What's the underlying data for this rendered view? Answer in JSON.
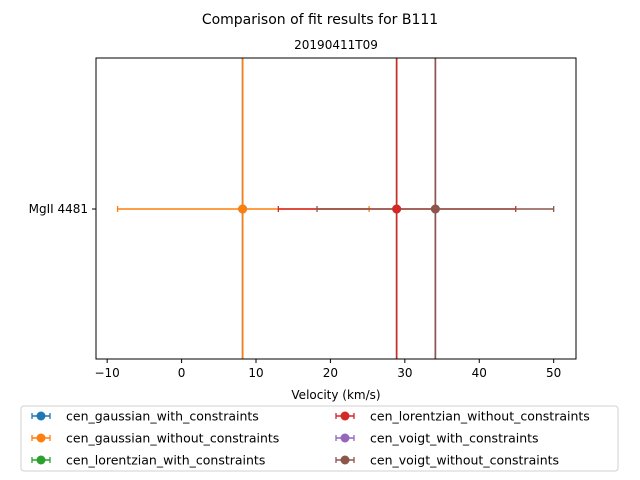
{
  "chart_data": {
    "type": "scatter",
    "title": "Comparison of fit results for B111",
    "subtitle": "20190411T09",
    "xlabel": "Velocity (km/s)",
    "ylabel": "",
    "xlim": [
      -11.5,
      53.0
    ],
    "xticks": [
      -10,
      0,
      10,
      20,
      30,
      40,
      50
    ],
    "categories": [
      "MgII 4481"
    ],
    "grid": false,
    "legend_position": "lower center",
    "legend_ncol": 2,
    "series": [
      {
        "name": "cen_gaussian_with_constraints",
        "color": "#1f77b4",
        "x": 8.2,
        "xerr_low": 8.2,
        "xerr_high": 8.2,
        "vline": 8.2
      },
      {
        "name": "cen_gaussian_without_constraints",
        "color": "#ff7f0e",
        "x": 8.2,
        "xerr_low": -8.6,
        "xerr_high": 25.2,
        "vline": 8.2
      },
      {
        "name": "cen_lorentzian_with_constraints",
        "color": "#2ca02c",
        "x": 28.9,
        "xerr_low": 28.9,
        "xerr_high": 28.9,
        "vline": 28.9
      },
      {
        "name": "cen_lorentzian_without_constraints",
        "color": "#d62728",
        "x": 28.9,
        "xerr_low": 13.0,
        "xerr_high": 44.9,
        "vline": 28.9
      },
      {
        "name": "cen_voigt_with_constraints",
        "color": "#9467bd",
        "x": 34.1,
        "xerr_low": 34.1,
        "xerr_high": 34.1,
        "vline": 34.1
      },
      {
        "name": "cen_voigt_without_constraints",
        "color": "#8c564b",
        "x": 34.1,
        "xerr_low": 18.2,
        "xerr_high": 50.0,
        "vline": 34.1
      }
    ]
  }
}
